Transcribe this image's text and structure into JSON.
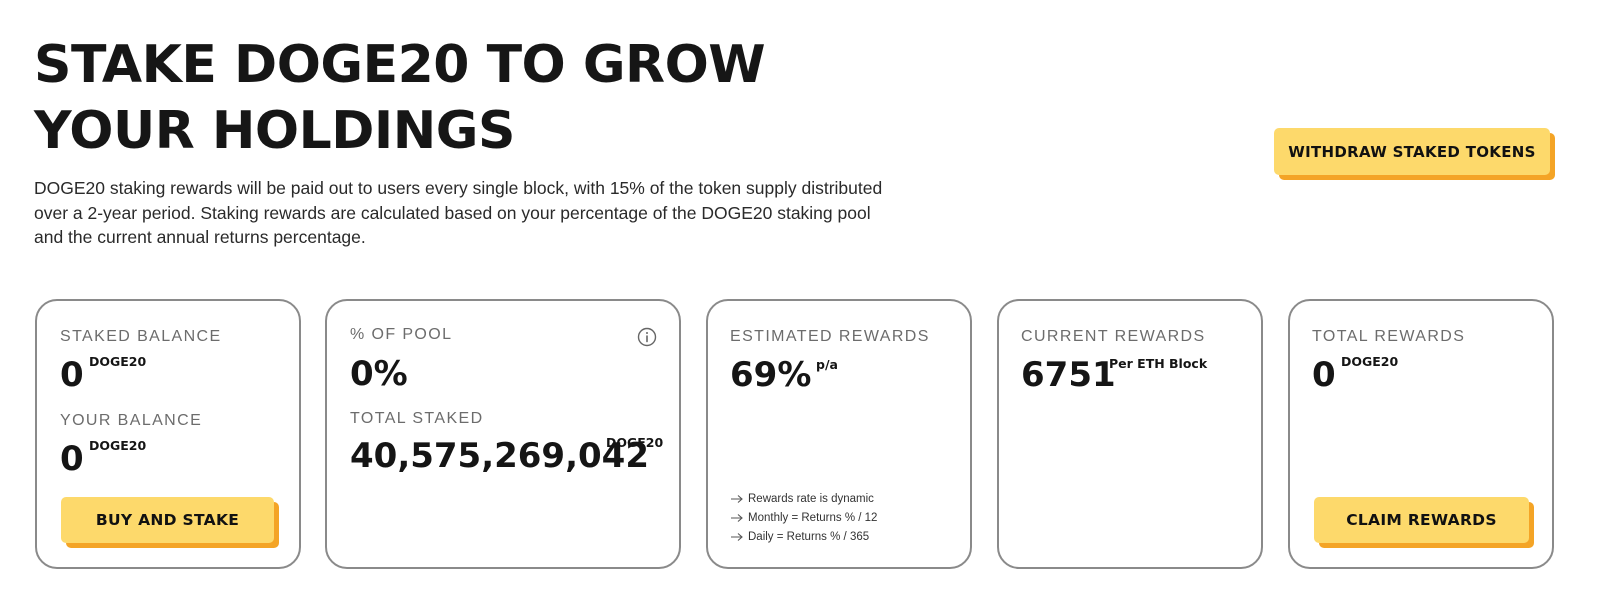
{
  "header": {
    "title_line1": "STAKE DOGE20 TO GROW",
    "title_line2": "YOUR HOLDINGS",
    "description": "DOGE20 staking rewards will be paid out to users every single block, with 15% of the token supply distributed over a 2-year period. Staking rewards are calculated based on your percentage of the DOGE20 staking pool and the current annual returns percentage.",
    "withdraw_label": "WITHDRAW STAKED TOKENS"
  },
  "cards": {
    "balance": {
      "staked_label": "STAKED BALANCE",
      "staked_value": "0",
      "staked_unit": "DOGE20",
      "your_label": "YOUR BALANCE",
      "your_value": "0",
      "your_unit": "DOGE20",
      "button_label": "BUY AND STAKE"
    },
    "pool": {
      "percent_label": "% OF POOL",
      "percent_value": "0%",
      "total_label": "TOTAL STAKED",
      "total_value": "40,575,269,042",
      "total_unit": "DOGE20",
      "info_icon": "info-circle-icon"
    },
    "estimated": {
      "label": "ESTIMATED REWARDS",
      "value": "69%",
      "unit": "p/a",
      "notes": [
        "Rewards rate is dynamic",
        "Monthly = Returns % / 12",
        "Daily = Returns % / 365"
      ],
      "note_icon": "arrow-right-icon"
    },
    "current": {
      "label": "CURRENT REWARDS",
      "value": "6751",
      "unit": "Per ETH Block"
    },
    "total": {
      "label": "TOTAL REWARDS",
      "value": "0",
      "unit": "DOGE20",
      "button_label": "CLAIM REWARDS"
    }
  },
  "colors": {
    "button_fill": "#fdd96b",
    "button_shadow": "#f4a426",
    "card_border": "#8a8a8a",
    "label_text": "#6c6c6c"
  }
}
